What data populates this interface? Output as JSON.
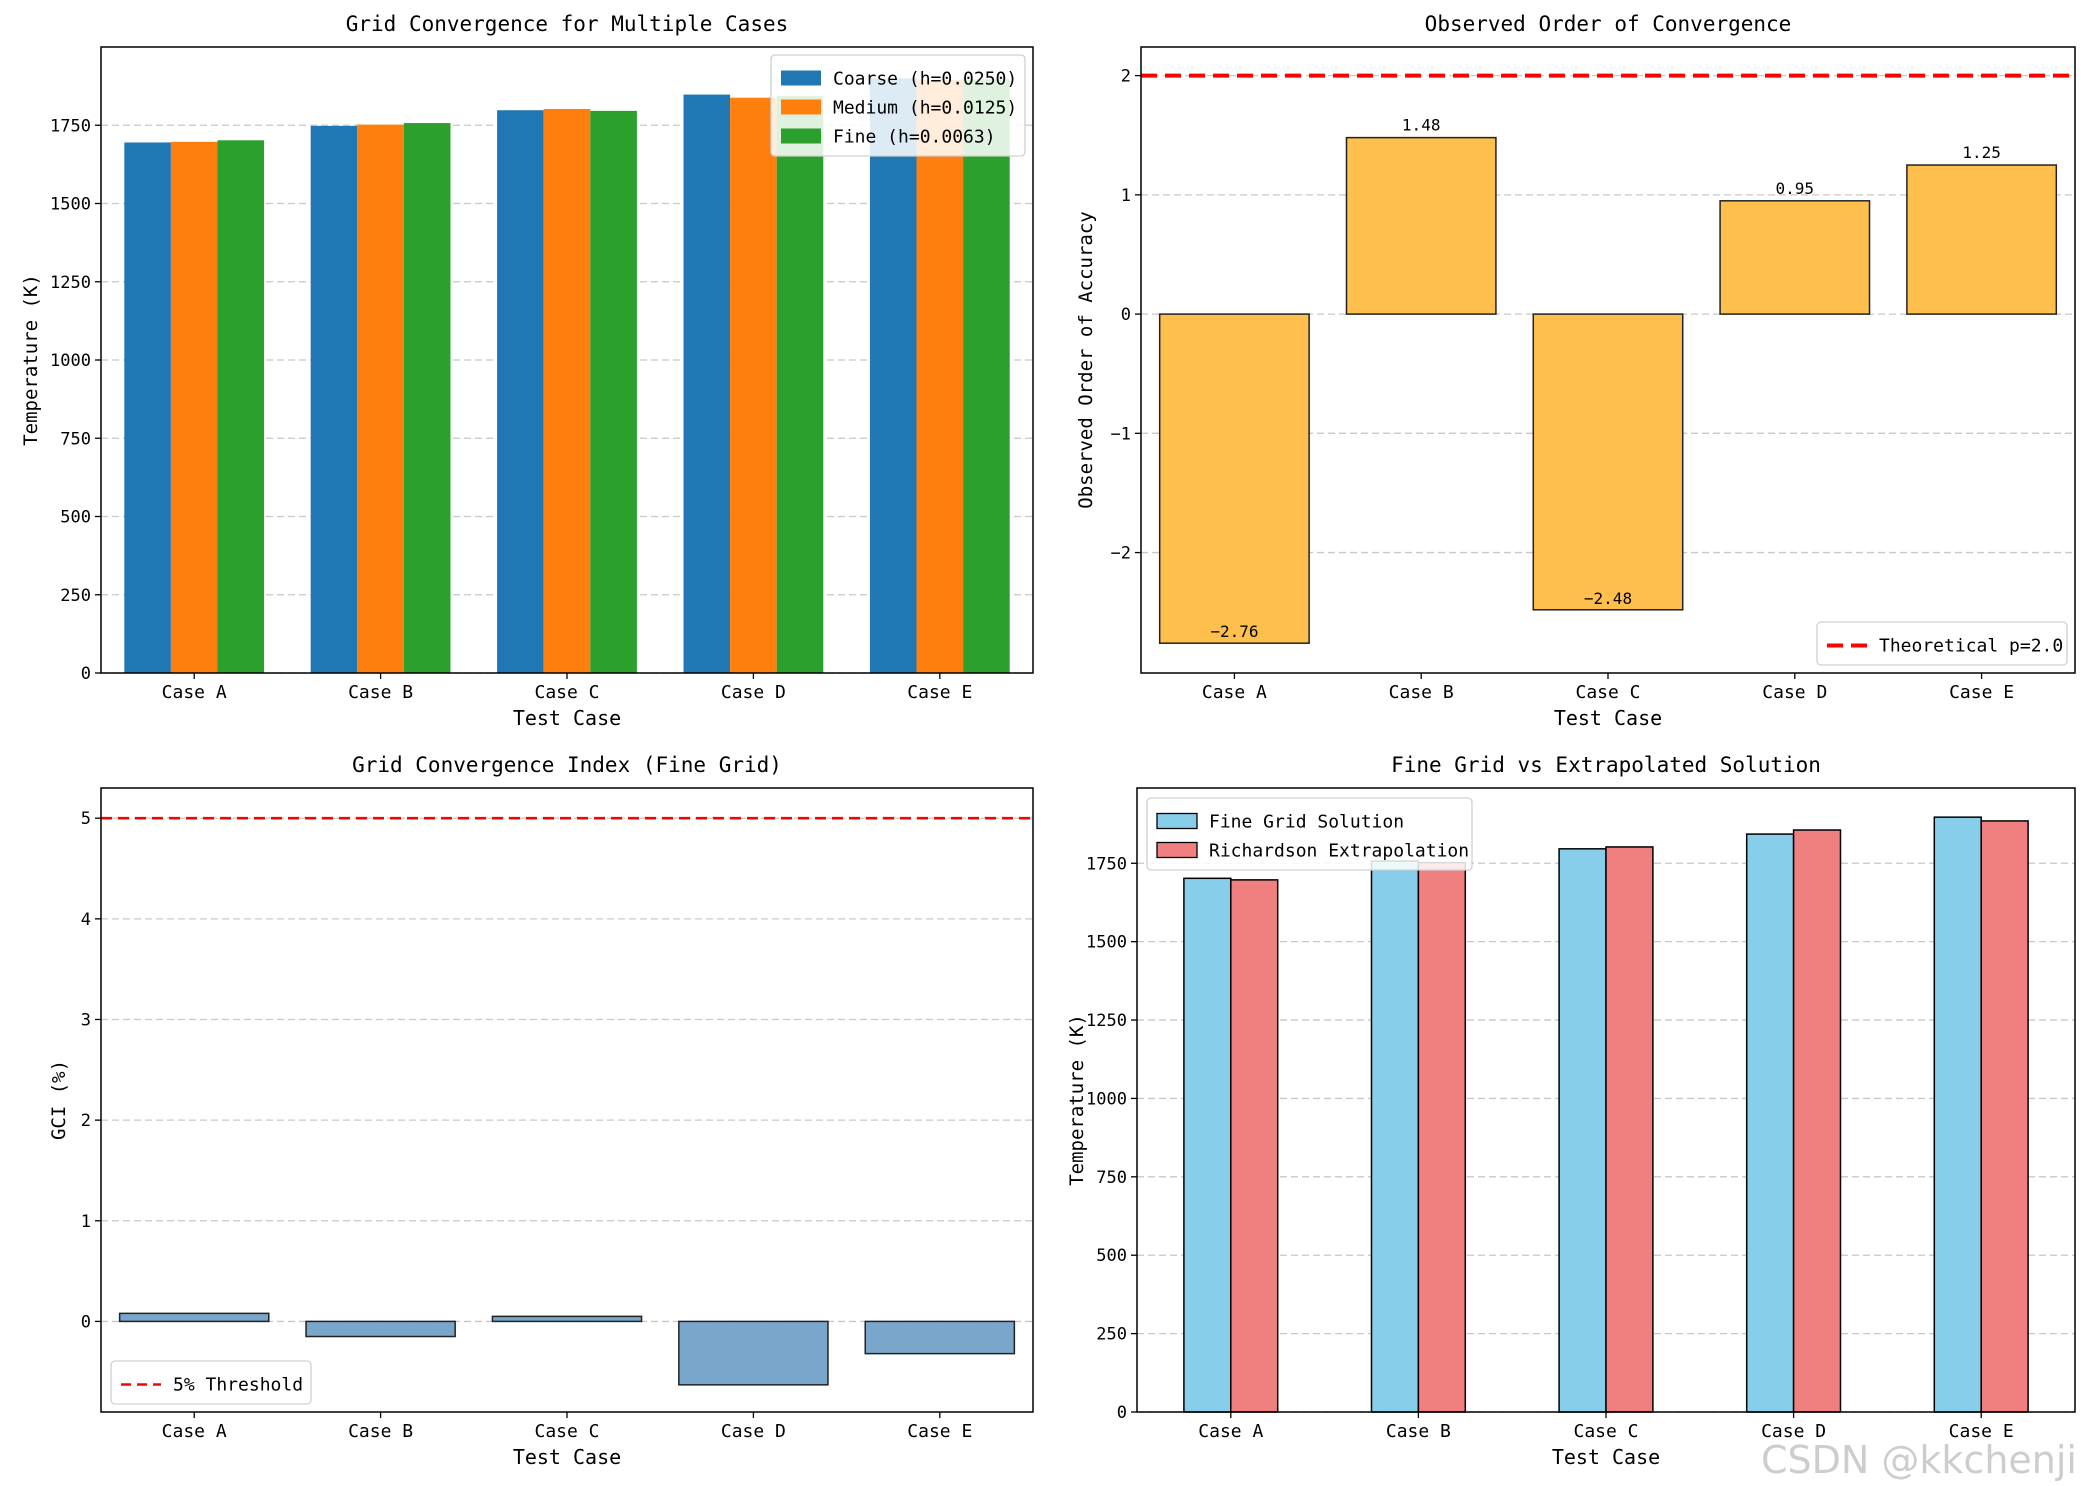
{
  "watermark": "CSDN @kkchenji",
  "chart_data": [
    {
      "type": "bar",
      "title": "Grid Convergence for Multiple Cases",
      "xlabel": "Test Case",
      "ylabel": "Temperature (K)",
      "categories": [
        "Case A",
        "Case B",
        "Case C",
        "Case D",
        "Case E"
      ],
      "ylim": [
        0,
        2000
      ],
      "yticks": [
        0,
        250,
        500,
        750,
        1000,
        1250,
        1500,
        1750
      ],
      "grid": true,
      "legend": "top-right",
      "series": [
        {
          "name": "Coarse (h=0.0250)",
          "color": "#1f77b4",
          "values": [
            1695,
            1748,
            1798,
            1848,
            1900
          ]
        },
        {
          "name": "Medium (h=0.0125)",
          "color": "#ff7f0e",
          "values": [
            1697,
            1752,
            1802,
            1838,
            1895
          ]
        },
        {
          "name": "Fine (h=0.0063)",
          "color": "#2ca02c",
          "values": [
            1702,
            1757,
            1796,
            1843,
            1897
          ]
        }
      ]
    },
    {
      "type": "bar",
      "title": "Observed Order of Convergence",
      "xlabel": "Test Case",
      "ylabel": "Observed Order of Accuracy",
      "categories": [
        "Case A",
        "Case B",
        "Case C",
        "Case D",
        "Case E"
      ],
      "ylim": [
        -3.01,
        2.24
      ],
      "yticks": [
        -2,
        -1,
        0,
        1,
        2
      ],
      "grid": true,
      "legend": "bottom-right",
      "series": [
        {
          "name": "Observed Order",
          "color": "#ffbf4d",
          "values": [
            -2.76,
            1.48,
            -2.48,
            0.95,
            1.25
          ]
        }
      ],
      "value_labels": [
        "-2.76",
        "1.48",
        "-2.48",
        "0.95",
        "1.25"
      ],
      "reference_line": {
        "y": 2.0,
        "label": "Theoretical p=2.0",
        "color": "#ff0000"
      }
    },
    {
      "type": "bar",
      "title": "Grid Convergence Index (Fine Grid)",
      "xlabel": "Test Case",
      "ylabel": "GCI (%)",
      "categories": [
        "Case A",
        "Case B",
        "Case C",
        "Case D",
        "Case E"
      ],
      "ylim": [
        -0.9,
        5.3
      ],
      "yticks": [
        0,
        1,
        2,
        3,
        4,
        5
      ],
      "grid": true,
      "legend": "bottom-left",
      "series": [
        {
          "name": "GCI",
          "color": "#7ba6cc",
          "values": [
            0.08,
            -0.15,
            0.05,
            -0.63,
            -0.32
          ]
        }
      ],
      "reference_line": {
        "y": 5,
        "label": "5% Threshold",
        "color": "#ff0000"
      }
    },
    {
      "type": "bar",
      "title": "Fine Grid vs Extrapolated Solution",
      "xlabel": "Test Case",
      "ylabel": "Temperature (K)",
      "categories": [
        "Case A",
        "Case B",
        "Case C",
        "Case D",
        "Case E"
      ],
      "ylim": [
        0,
        1990
      ],
      "yticks": [
        0,
        250,
        500,
        750,
        1000,
        1250,
        1500,
        1750
      ],
      "grid": true,
      "legend": "top-left",
      "series": [
        {
          "name": "Fine Grid Solution",
          "color": "#87ceeb",
          "values": [
            1702,
            1757,
            1796,
            1843,
            1897
          ]
        },
        {
          "name": "Richardson Extrapolation",
          "color": "#f08080",
          "values": [
            1697,
            1752,
            1802,
            1856,
            1885
          ]
        }
      ]
    }
  ]
}
